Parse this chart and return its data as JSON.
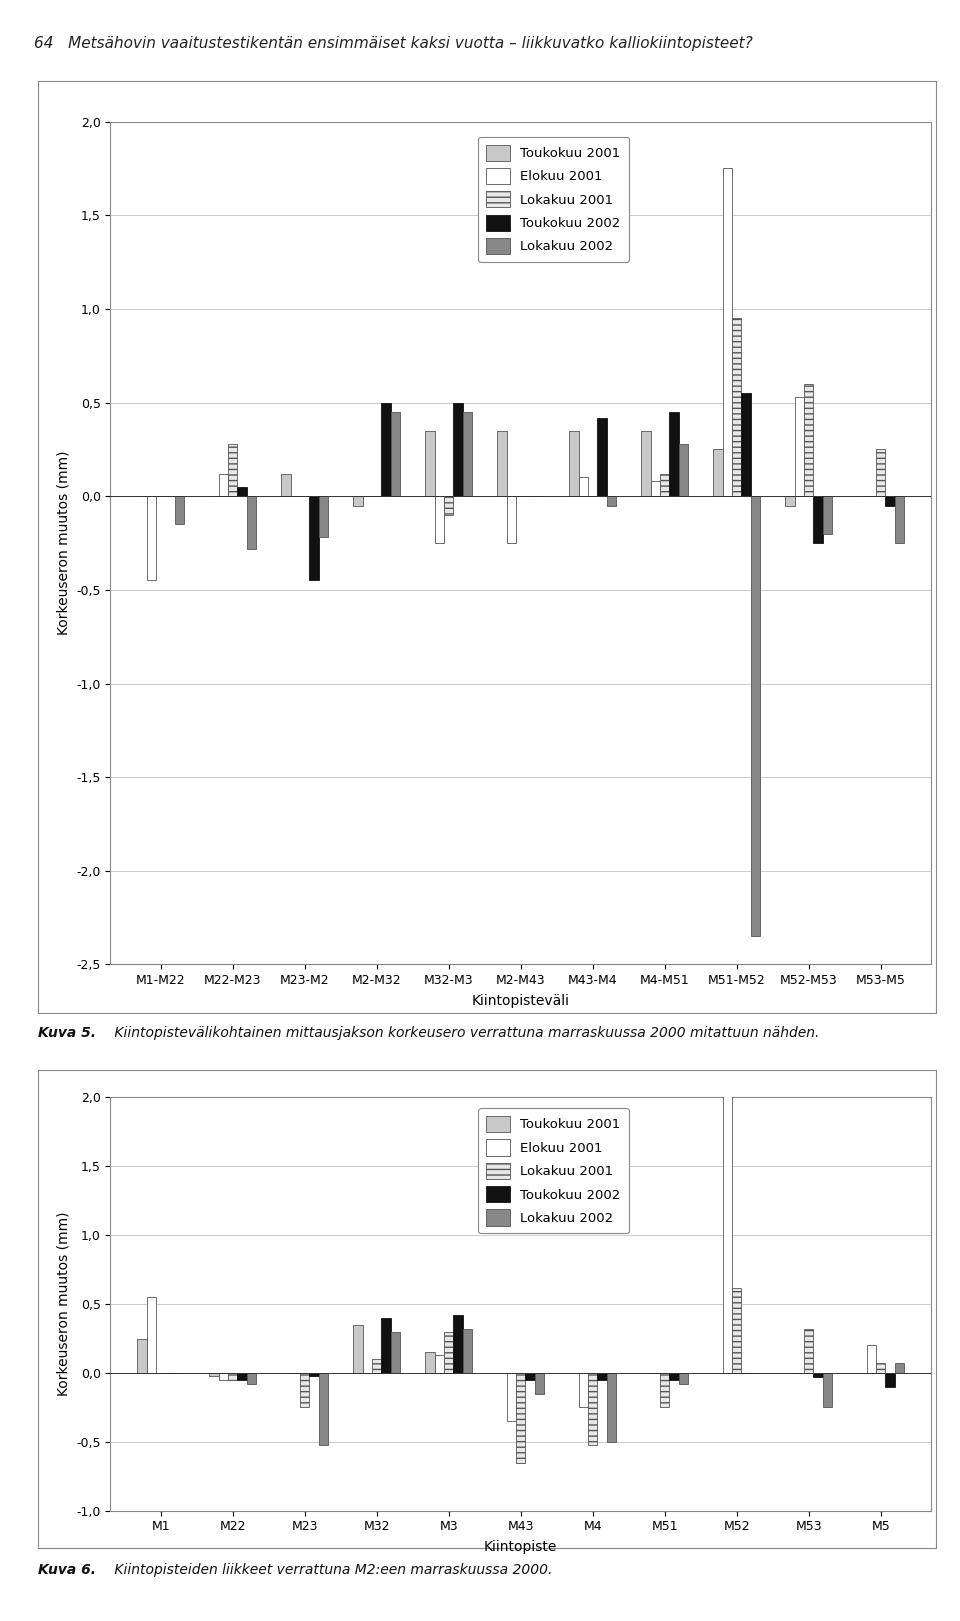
{
  "chart1": {
    "categories": [
      "M1-M22",
      "M22-M23",
      "M23-M2",
      "M2-M32",
      "M32-M3",
      "M2-M43",
      "M43-M4",
      "M4-M51",
      "M51-M52",
      "M52-M53",
      "M53-M5"
    ],
    "series": {
      "Toukokuu 2001": [
        0.0,
        0.0,
        0.12,
        -0.05,
        0.35,
        0.35,
        0.35,
        0.35,
        0.25,
        -0.05,
        0.0
      ],
      "Elokuu 2001": [
        -0.45,
        0.12,
        0.0,
        0.0,
        -0.25,
        -0.25,
        0.1,
        0.08,
        1.75,
        0.53,
        0.0
      ],
      "Lokakuu 2001": [
        0.0,
        0.28,
        0.0,
        0.0,
        -0.1,
        0.0,
        0.0,
        0.12,
        0.95,
        0.6,
        0.25
      ],
      "Toukokuu 2002": [
        0.0,
        0.05,
        -0.45,
        0.5,
        0.5,
        0.0,
        0.42,
        0.45,
        0.55,
        -0.25,
        -0.05
      ],
      "Lokakuu 2002": [
        -0.15,
        -0.28,
        -0.22,
        0.45,
        0.45,
        0.0,
        -0.05,
        0.28,
        -2.35,
        -0.2,
        -0.25
      ]
    },
    "ylabel": "Korkeuseron muutos (mm)",
    "xlabel": "Kiintopisteväli",
    "ylim": [
      -2.5,
      2.0
    ],
    "yticks": [
      -2.5,
      -2.0,
      -1.5,
      -1.0,
      -0.5,
      0.0,
      0.5,
      1.0,
      1.5,
      2.0
    ],
    "ytick_labels": [
      "-2,5",
      "-2,0",
      "-1,5",
      "-1,0",
      "-0,5",
      "0,0",
      "0,5",
      "1,0",
      "1,5",
      "2,0"
    ]
  },
  "chart2": {
    "categories": [
      "M1",
      "M22",
      "M23",
      "M32",
      "M3",
      "M43",
      "M4",
      "M51",
      "M52",
      "M53",
      "M5"
    ],
    "series": {
      "Toukokuu 2001": [
        0.25,
        -0.02,
        0.0,
        0.35,
        0.15,
        0.0,
        0.0,
        0.0,
        0.0,
        0.0,
        0.0
      ],
      "Elokuu 2001": [
        0.55,
        -0.05,
        0.0,
        0.0,
        0.13,
        -0.35,
        -0.25,
        0.0,
        2.05,
        0.0,
        0.2
      ],
      "Lokakuu 2001": [
        0.0,
        -0.05,
        -0.25,
        0.1,
        0.3,
        -0.65,
        -0.52,
        -0.25,
        0.62,
        0.32,
        0.07
      ],
      "Toukokuu 2002": [
        0.0,
        -0.05,
        -0.02,
        0.4,
        0.42,
        -0.05,
        -0.05,
        -0.05,
        0.0,
        -0.03,
        -0.1
      ],
      "Lokakuu 2002": [
        0.0,
        -0.08,
        -0.52,
        0.3,
        0.32,
        -0.15,
        -0.5,
        -0.08,
        0.0,
        -0.25,
        0.07
      ]
    },
    "ylabel": "Korkeuseron muutos (mm)",
    "xlabel": "Kiintopiste",
    "ylim": [
      -1.0,
      2.0
    ],
    "yticks": [
      -1.0,
      -0.5,
      0.0,
      0.5,
      1.0,
      1.5,
      2.0
    ],
    "ytick_labels": [
      "-1,0",
      "-0,5",
      "0,0",
      "0,5",
      "1,0",
      "1,5",
      "2,0"
    ]
  },
  "series_names": [
    "Toukokuu 2001",
    "Elokuu 2001",
    "Lokakuu 2001",
    "Toukokuu 2002",
    "Lokakuu 2002"
  ],
  "series_styles": {
    "Toukokuu 2001": {
      "color": "#c8c8c8",
      "hatch": "",
      "edgecolor": "#555555"
    },
    "Elokuu 2001": {
      "color": "#ffffff",
      "hatch": "",
      "edgecolor": "#555555"
    },
    "Lokakuu 2001": {
      "color": "#e8e8e8",
      "hatch": "---",
      "edgecolor": "#555555"
    },
    "Toukokuu 2002": {
      "color": "#111111",
      "hatch": "",
      "edgecolor": "#111111"
    },
    "Lokakuu 2002": {
      "color": "#888888",
      "hatch": "",
      "edgecolor": "#555555"
    }
  },
  "header_text": "64   Metsähovin vaaitustestikentän ensimmäiset kaksi vuotta – liikkuvatko kalliokiintopisteet?",
  "chart1_caption_bold": "Kuva 5.",
  "chart1_caption_rest": " Kiintopistevälikohtainen mittausjakson korkeusero verrattuna marraskuussa 2000 mitattuun nähden.",
  "chart2_caption_bold": "Kuva 6.",
  "chart2_caption_rest": " Kiintopisteiden liikkeet verrattuna M2:een marraskuussa 2000.",
  "background_color": "#ffffff",
  "plot_bg_color": "#ffffff",
  "grid_color": "#cccccc",
  "box_outline_color": "#888888"
}
